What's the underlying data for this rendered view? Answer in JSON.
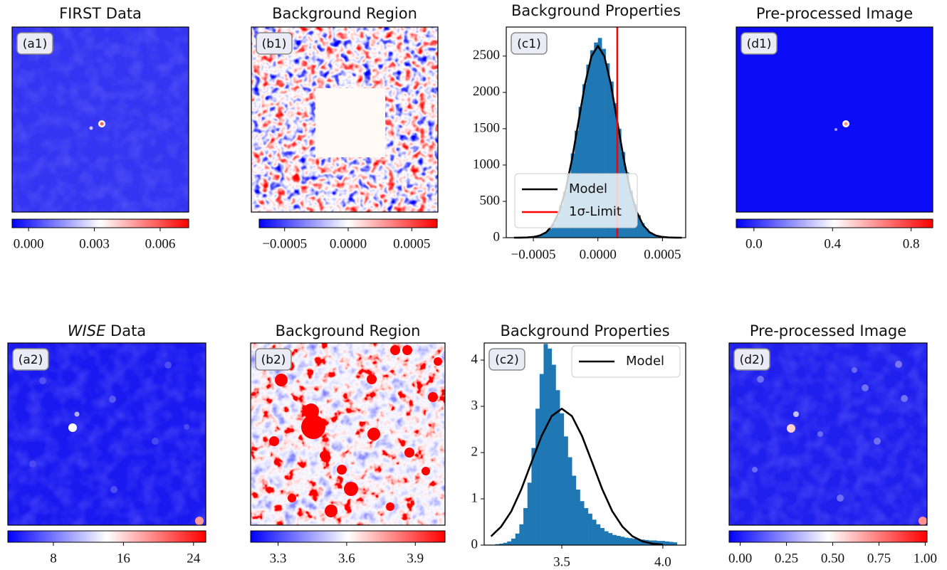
{
  "chart_data": [
    {
      "type": "image",
      "title": "FIRST Data",
      "panel_label": "(a1)",
      "colormap": [
        "#0000ff",
        "#ffffff",
        "#ff0000"
      ],
      "clim": [
        -0.00075,
        0.0073
      ],
      "cticks": [
        {
          "value": 0,
          "label": "0.000"
        },
        0.003,
        0.006
      ]
    },
    {
      "type": "image",
      "title": "Background Region",
      "panel_label": "(b1)",
      "colormap": [
        "#0000ff",
        "#ffffff",
        "#ff0000"
      ],
      "clim": [
        -0.0007,
        0.0007
      ],
      "cticks": [
        {
          "value": -0.0005,
          "label": "−0.0005"
        },
        {
          "value": 0,
          "label": "0.0000"
        },
        0.0005
      ]
    },
    {
      "type": "histogram",
      "title": "Background Properties",
      "panel_label": "(c1)",
      "color": "#1f77b4",
      "bins": [
        -0.0006,
        -0.00057,
        -0.00054,
        -0.00051,
        -0.00048,
        -0.00045,
        -0.00042,
        -0.00039,
        -0.00036,
        -0.00033,
        -0.0003,
        -0.00027,
        -0.00024,
        -0.00021,
        -0.00018,
        -0.00015,
        -0.00012,
        -9e-05,
        -6e-05,
        -3e-05,
        0,
        3e-05,
        6e-05,
        9e-05,
        0.00012,
        0.00015,
        0.00018,
        0.00021,
        0.00024,
        0.00027,
        0.0003,
        0.00033,
        0.00036,
        0.00039,
        0.00042,
        0.00045,
        0.00048,
        0.00051,
        0.00054,
        0.00057,
        0.0006
      ],
      "values": [
        1,
        3,
        6,
        12,
        22,
        40,
        71,
        119,
        192,
        298,
        444,
        636,
        877,
        1160,
        1474,
        1801,
        2113,
        2383,
        2581,
        2687,
        2750,
        2600,
        2400,
        2150,
        1850,
        1500,
        1180,
        900,
        650,
        460,
        310,
        200,
        125,
        75,
        42,
        24,
        13,
        7,
        3,
        1
      ],
      "series": [
        {
          "name": "Model",
          "color": "#000000",
          "x": [
            -0.00065,
            -0.0006,
            -0.00055,
            -0.0005,
            -0.00045,
            -0.0004,
            -0.00035,
            -0.0003,
            -0.00025,
            -0.0002,
            -0.00015,
            -0.0001,
            -5e-05,
            0,
            5e-05,
            0.0001,
            0.00015,
            0.0002,
            0.00025,
            0.0003,
            0.00035,
            0.0004,
            0.00045,
            0.0005,
            0.00055,
            0.0006,
            0.00065
          ],
          "values": [
            0,
            1,
            3,
            10,
            29,
            75,
            174,
            357,
            658,
            1085,
            1601,
            2114,
            2497,
            2640,
            2497,
            2114,
            1601,
            1085,
            658,
            357,
            174,
            75,
            29,
            10,
            3,
            1,
            0
          ]
        },
        {
          "name": "1σ-Limit",
          "color": "#ff0000",
          "x": 0.00015
        }
      ],
      "legend": "lower left",
      "xlim": [
        -0.00071,
        0.00068
      ],
      "ylim": [
        0,
        2900
      ],
      "xticks": [
        {
          "value": -0.0005,
          "label": "−0.0005"
        },
        {
          "value": 0,
          "label": "0.0000"
        },
        0.0005
      ],
      "yticks": [
        0,
        500,
        1000,
        1500,
        2000,
        2500
      ]
    },
    {
      "type": "image",
      "title": "Pre-processed Image",
      "panel_label": "(d1)",
      "colormap": [
        "#0000ff",
        "#ffffff",
        "#ff0000"
      ],
      "clim": [
        -0.09,
        0.91
      ],
      "cticks": [
        {
          "value": 0,
          "label": "0.0"
        },
        0.4,
        0.8
      ]
    },
    {
      "type": "image",
      "title_italic": "WISE",
      "title": " Data",
      "panel_label": "(a2)",
      "colormap": [
        "#0000ff",
        "#ffffff",
        "#ff0000"
      ],
      "clim": [
        2.8,
        25.4
      ],
      "cticks": [
        8,
        16,
        24
      ]
    },
    {
      "type": "image",
      "title": "Background Region",
      "panel_label": "(b2)",
      "colormap": [
        "#0000ff",
        "#ffffff",
        "#ff0000"
      ],
      "clim": [
        3.18,
        4.03
      ],
      "cticks": [
        3.3,
        3.6,
        3.9
      ]
    },
    {
      "type": "histogram",
      "title": "Background Properties",
      "panel_label": "(c2)",
      "color": "#1f77b4",
      "bins": [
        3.17,
        3.19,
        3.21,
        3.23,
        3.25,
        3.27,
        3.29,
        3.31,
        3.33,
        3.35,
        3.37,
        3.39,
        3.41,
        3.43,
        3.45,
        3.47,
        3.49,
        3.51,
        3.53,
        3.55,
        3.57,
        3.59,
        3.61,
        3.63,
        3.65,
        3.67,
        3.69,
        3.71,
        3.73,
        3.75,
        3.77,
        3.79,
        3.81,
        3.83,
        3.85,
        3.87,
        3.89,
        3.91,
        3.93,
        3.95,
        3.97,
        3.99,
        4.01,
        4.03,
        4.05,
        4.07
      ],
      "values": [
        0.02,
        0.03,
        0.05,
        0.08,
        0.14,
        0.25,
        0.45,
        0.8,
        1.35,
        2.1,
        2.95,
        3.7,
        4.35,
        4.25,
        3.9,
        3.35,
        2.85,
        2.35,
        1.9,
        1.5,
        1.2,
        0.95,
        0.8,
        0.68,
        0.55,
        0.45,
        0.37,
        0.3,
        0.26,
        0.22,
        0.2,
        0.18,
        0.16,
        0.15,
        0.14,
        0.13,
        0.12,
        0.11,
        0.1,
        0.1,
        0.09,
        0.09,
        0.08,
        0.07,
        0.06
      ],
      "series": [
        {
          "name": "Model",
          "color": "#000000",
          "x": [
            3.15,
            3.2,
            3.25,
            3.3,
            3.35,
            3.4,
            3.45,
            3.5,
            3.55,
            3.6,
            3.65,
            3.7,
            3.75,
            3.8,
            3.85,
            3.9,
            3.95,
            4.0
          ],
          "values": [
            0.19,
            0.4,
            0.73,
            1.21,
            1.79,
            2.36,
            2.79,
            2.95,
            2.79,
            2.36,
            1.79,
            1.21,
            0.73,
            0.4,
            0.19,
            0.08,
            0.03,
            0.01
          ]
        }
      ],
      "legend": "upper right",
      "xlim": [
        3.116,
        4.113
      ],
      "ylim": [
        0,
        4.37
      ],
      "xticks": [
        3.5,
        {
          "value": 4,
          "label": "4.0"
        }
      ],
      "yticks": [
        0,
        1,
        2,
        3,
        4
      ]
    },
    {
      "type": "image",
      "title": "Pre-processed Image",
      "panel_label": "(d2)",
      "colormap": [
        "#0000ff",
        "#ffffff",
        "#ff0000"
      ],
      "clim": [
        -0.06,
        1.01
      ],
      "cticks": [
        {
          "value": 0,
          "label": "0.00"
        },
        0.25,
        {
          "value": 0.5,
          "label": "0.50"
        },
        0.75,
        {
          "value": 1,
          "label": "1.00"
        }
      ]
    }
  ]
}
